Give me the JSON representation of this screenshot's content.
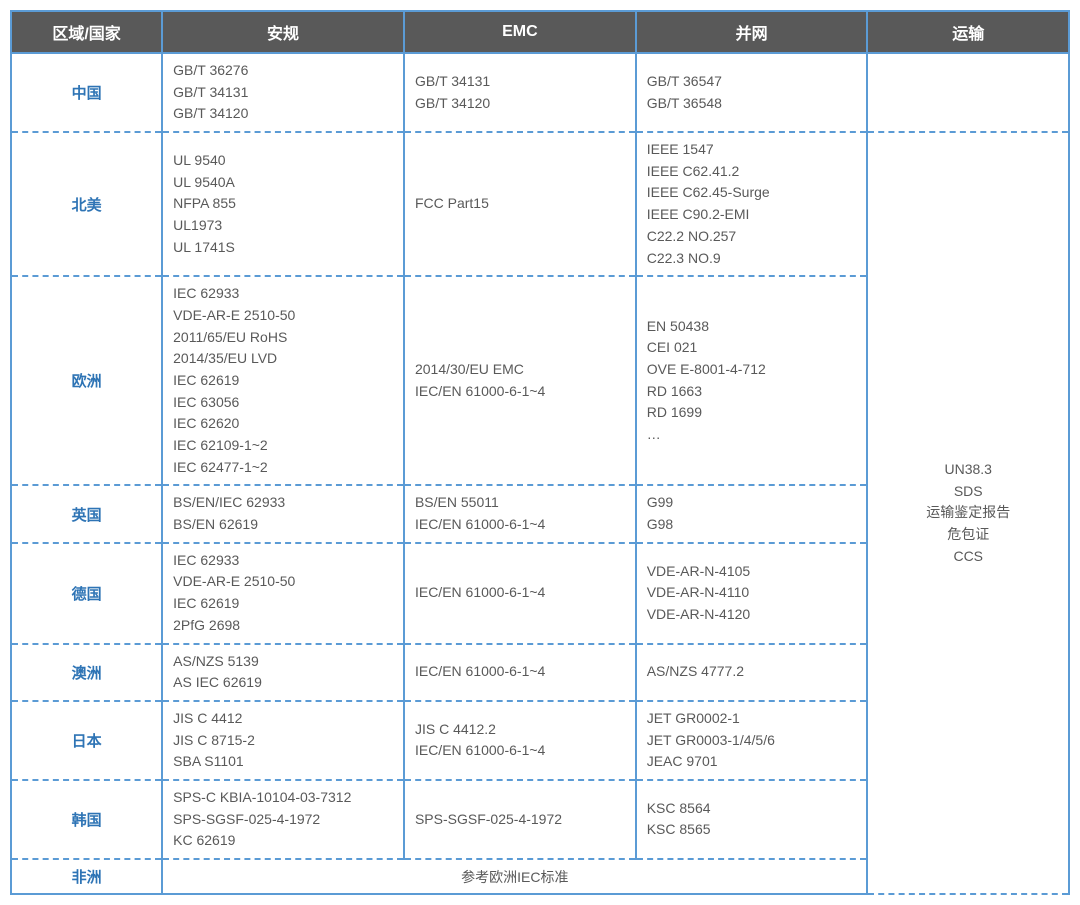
{
  "headers": {
    "region": "区域/国家",
    "safety": "安规",
    "emc": "EMC",
    "grid": "并网",
    "transport": "运输"
  },
  "rows": [
    {
      "region": "中国",
      "safety": [
        "GB/T 36276",
        "GB/T 34131",
        "GB/T 34120"
      ],
      "emc": [
        "GB/T 34131",
        "GB/T 34120"
      ],
      "grid": [
        "GB/T 36547",
        "GB/T 36548"
      ]
    },
    {
      "region": "北美",
      "safety": [
        "UL 9540",
        "UL 9540A",
        "NFPA 855",
        "UL1973",
        "UL 1741S"
      ],
      "emc": [
        "FCC Part15"
      ],
      "grid": [
        "IEEE 1547",
        "IEEE C62.41.2",
        "IEEE C62.45-Surge",
        "IEEE C90.2-EMI",
        "C22.2 NO.257",
        "C22.3 NO.9"
      ]
    },
    {
      "region": "欧洲",
      "safety": [
        "IEC 62933",
        "VDE-AR-E 2510-50",
        "2011/65/EU RoHS",
        "2014/35/EU LVD",
        "IEC 62619",
        "IEC 63056",
        "IEC 62620",
        "IEC 62109-1~2",
        "IEC 62477-1~2"
      ],
      "emc": [
        "2014/30/EU EMC",
        "IEC/EN 61000-6-1~4"
      ],
      "grid": [
        "EN 50438",
        "CEI 021",
        "OVE E-8001-4-712",
        "RD 1663",
        "RD 1699",
        "…"
      ]
    },
    {
      "region": "英国",
      "safety": [
        "BS/EN/IEC 62933",
        "BS/EN 62619"
      ],
      "emc": [
        "BS/EN 55011",
        "IEC/EN 61000-6-1~4"
      ],
      "grid": [
        "G99",
        "G98"
      ]
    },
    {
      "region": "德国",
      "safety": [
        "IEC 62933",
        "VDE-AR-E 2510-50",
        "IEC 62619",
        "2PfG 2698"
      ],
      "emc": [
        "IEC/EN 61000-6-1~4"
      ],
      "grid": [
        "VDE-AR-N-4105",
        "VDE-AR-N-4110",
        "VDE-AR-N-4120"
      ]
    },
    {
      "region": "澳洲",
      "safety": [
        "AS/NZS 5139",
        "AS IEC 62619"
      ],
      "emc": [
        "IEC/EN 61000-6-1~4"
      ],
      "grid": [
        "AS/NZS 4777.2"
      ]
    },
    {
      "region": "日本",
      "safety": [
        "JIS C 4412",
        "JIS C 8715-2",
        "SBA S1101"
      ],
      "emc": [
        "JIS C 4412.2",
        "IEC/EN 61000-6-1~4"
      ],
      "grid": [
        "JET GR0002-1",
        "JET GR0003-1/4/5/6",
        "JEAC 9701"
      ]
    },
    {
      "region": "韩国",
      "safety": [
        "SPS-C KBIA-10104-03-7312",
        "SPS-SGSF-025-4-1972",
        "KC 62619"
      ],
      "emc": [
        "SPS-SGSF-025-4-1972"
      ],
      "grid": [
        "KSC 8564",
        "KSC 8565"
      ]
    }
  ],
  "africa": {
    "region": "非洲",
    "note": "参考欧洲IEC标准"
  },
  "transport": [
    "UN38.3",
    "SDS",
    "运输鉴定报告",
    "危包证",
    "CCS"
  ],
  "style": {
    "header_bg": "#595959",
    "header_fg": "#ffffff",
    "border_color": "#5b9bd5",
    "region_color": "#2e74b5",
    "text_color": "#595959",
    "header_fontsize": 16,
    "cell_fontsize": 14,
    "col_widths": {
      "region": 150,
      "safety": 240,
      "emc": 230,
      "grid": 230,
      "transport": 200
    }
  }
}
